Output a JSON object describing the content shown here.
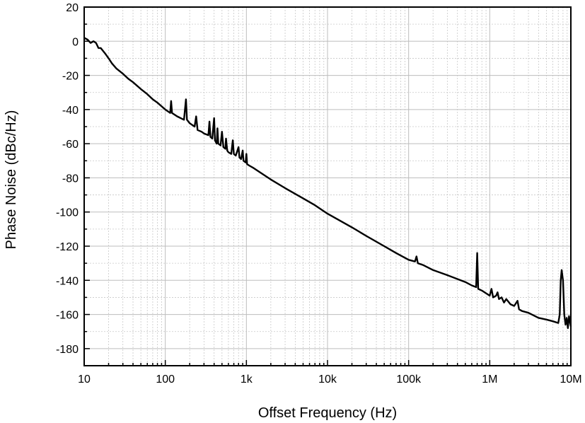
{
  "chart_data": {
    "type": "line",
    "title": "",
    "xlabel": "Offset Frequency (Hz)",
    "ylabel": "Phase Noise (dBc/Hz)",
    "x_scale": "log",
    "xlim": [
      10,
      10000000
    ],
    "ylim": [
      -190,
      20
    ],
    "grid": true,
    "x_ticks": [
      {
        "value": 10,
        "label": "10"
      },
      {
        "value": 100,
        "label": "100"
      },
      {
        "value": 1000,
        "label": "1k"
      },
      {
        "value": 10000,
        "label": "10k"
      },
      {
        "value": 100000,
        "label": "100k"
      },
      {
        "value": 1000000,
        "label": "1M"
      },
      {
        "value": 10000000,
        "label": "10M"
      }
    ],
    "y_ticks": [
      {
        "value": 20,
        "label": "20"
      },
      {
        "value": 0,
        "label": "0"
      },
      {
        "value": -20,
        "label": "-20"
      },
      {
        "value": -40,
        "label": "-40"
      },
      {
        "value": -60,
        "label": "-60"
      },
      {
        "value": -80,
        "label": "-80"
      },
      {
        "value": -100,
        "label": "-100"
      },
      {
        "value": -120,
        "label": "-120"
      },
      {
        "value": -140,
        "label": "-140"
      },
      {
        "value": -160,
        "label": "-160"
      },
      {
        "value": -180,
        "label": "-180"
      }
    ],
    "series": [
      {
        "color": "#000000",
        "points": [
          [
            10,
            2
          ],
          [
            11,
            1
          ],
          [
            12,
            -1
          ],
          [
            13,
            0
          ],
          [
            14,
            -1
          ],
          [
            15,
            -4
          ],
          [
            16,
            -4
          ],
          [
            18,
            -7
          ],
          [
            20,
            -10
          ],
          [
            22,
            -13
          ],
          [
            25,
            -16
          ],
          [
            30,
            -19
          ],
          [
            35,
            -22
          ],
          [
            40,
            -24
          ],
          [
            50,
            -28
          ],
          [
            60,
            -31
          ],
          [
            70,
            -34
          ],
          [
            80,
            -36
          ],
          [
            100,
            -40
          ],
          [
            115,
            -42
          ],
          [
            118,
            -35
          ],
          [
            121,
            -42
          ],
          [
            140,
            -44
          ],
          [
            170,
            -46
          ],
          [
            180,
            -34
          ],
          [
            185,
            -46
          ],
          [
            200,
            -48
          ],
          [
            230,
            -50
          ],
          [
            240,
            -44
          ],
          [
            250,
            -52
          ],
          [
            280,
            -53
          ],
          [
            300,
            -54
          ],
          [
            340,
            -55
          ],
          [
            350,
            -47
          ],
          [
            360,
            -56
          ],
          [
            380,
            -57
          ],
          [
            400,
            -45
          ],
          [
            410,
            -58
          ],
          [
            430,
            -60
          ],
          [
            440,
            -51
          ],
          [
            450,
            -60
          ],
          [
            480,
            -61
          ],
          [
            500,
            -53
          ],
          [
            520,
            -62
          ],
          [
            550,
            -63
          ],
          [
            560,
            -57
          ],
          [
            580,
            -64
          ],
          [
            600,
            -65
          ],
          [
            650,
            -66
          ],
          [
            680,
            -58
          ],
          [
            700,
            -66
          ],
          [
            740,
            -67
          ],
          [
            800,
            -62
          ],
          [
            820,
            -68
          ],
          [
            860,
            -69
          ],
          [
            900,
            -64
          ],
          [
            920,
            -70
          ],
          [
            980,
            -71
          ],
          [
            1000,
            -66
          ],
          [
            1020,
            -72
          ],
          [
            1100,
            -73
          ],
          [
            1200,
            -74
          ],
          [
            1500,
            -77
          ],
          [
            2000,
            -81
          ],
          [
            3000,
            -86
          ],
          [
            5000,
            -92
          ],
          [
            7000,
            -96
          ],
          [
            10000,
            -101
          ],
          [
            20000,
            -109
          ],
          [
            30000,
            -114
          ],
          [
            50000,
            -120
          ],
          [
            70000,
            -124
          ],
          [
            100000,
            -128
          ],
          [
            120000,
            -129
          ],
          [
            125000,
            -126
          ],
          [
            130000,
            -130
          ],
          [
            150000,
            -131
          ],
          [
            200000,
            -134
          ],
          [
            300000,
            -137
          ],
          [
            500000,
            -141
          ],
          [
            600000,
            -143
          ],
          [
            680000,
            -144
          ],
          [
            700000,
            -124
          ],
          [
            720000,
            -145
          ],
          [
            800000,
            -146
          ],
          [
            1000000,
            -149
          ],
          [
            1050000,
            -145
          ],
          [
            1100000,
            -150
          ],
          [
            1200000,
            -149
          ],
          [
            1250000,
            -147
          ],
          [
            1300000,
            -151
          ],
          [
            1400000,
            -150
          ],
          [
            1500000,
            -153
          ],
          [
            1600000,
            -151
          ],
          [
            1800000,
            -154
          ],
          [
            2000000,
            -155
          ],
          [
            2200000,
            -152
          ],
          [
            2300000,
            -157
          ],
          [
            2500000,
            -158
          ],
          [
            3000000,
            -159
          ],
          [
            4000000,
            -162
          ],
          [
            5000000,
            -163
          ],
          [
            6000000,
            -164
          ],
          [
            7000000,
            -165
          ],
          [
            7300000,
            -160
          ],
          [
            7500000,
            -140
          ],
          [
            7700000,
            -134
          ],
          [
            8000000,
            -140
          ],
          [
            8300000,
            -160
          ],
          [
            8600000,
            -166
          ],
          [
            8900000,
            -162
          ],
          [
            9200000,
            -168
          ],
          [
            9500000,
            -161
          ],
          [
            10000000,
            -167
          ]
        ]
      }
    ]
  }
}
